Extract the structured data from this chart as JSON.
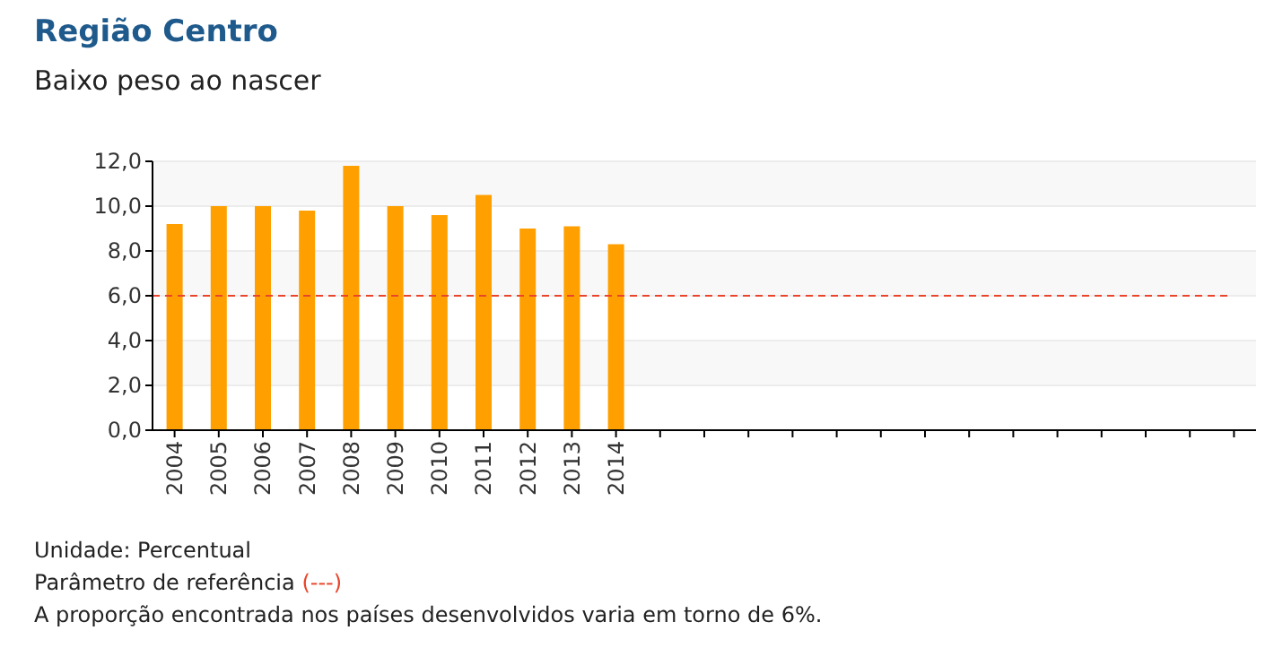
{
  "chart_data": {
    "type": "bar",
    "title": "Região Centro",
    "subtitle": "Baixo peso ao nascer",
    "categories": [
      "2004",
      "2005",
      "2006",
      "2007",
      "2008",
      "2009",
      "2010",
      "2011",
      "2012",
      "2013",
      "2014",
      null,
      null,
      null,
      null,
      null,
      null,
      null,
      null,
      null,
      null,
      null,
      null,
      null,
      null
    ],
    "values": [
      9.2,
      10.0,
      10.0,
      9.8,
      11.8,
      10.0,
      9.6,
      10.5,
      9.0,
      9.1,
      8.3,
      null,
      null,
      null,
      null,
      null,
      null,
      null,
      null,
      null,
      null,
      null,
      null,
      null,
      null
    ],
    "color": "#ffa000",
    "ylim": [
      0,
      12
    ],
    "yticks": [
      {
        "value": 0,
        "label": "0,0"
      },
      {
        "value": 2,
        "label": "2,0"
      },
      {
        "value": 4,
        "label": "4,0"
      },
      {
        "value": 6,
        "label": "6,0"
      },
      {
        "value": 8,
        "label": "8,0"
      },
      {
        "value": 10,
        "label": "10,0"
      },
      {
        "value": 12,
        "label": "12,0"
      }
    ],
    "grid": "y",
    "ref_lines": [
      {
        "axis": "y",
        "value": 6,
        "color": "#e8452c",
        "line_style": "dashed"
      }
    ],
    "annotations": [
      "Unidade: Percentual",
      "Parâmetro de referência (---)",
      "A proporção encontrada nos países desenvolvidos varia em torno de 6%."
    ]
  }
}
